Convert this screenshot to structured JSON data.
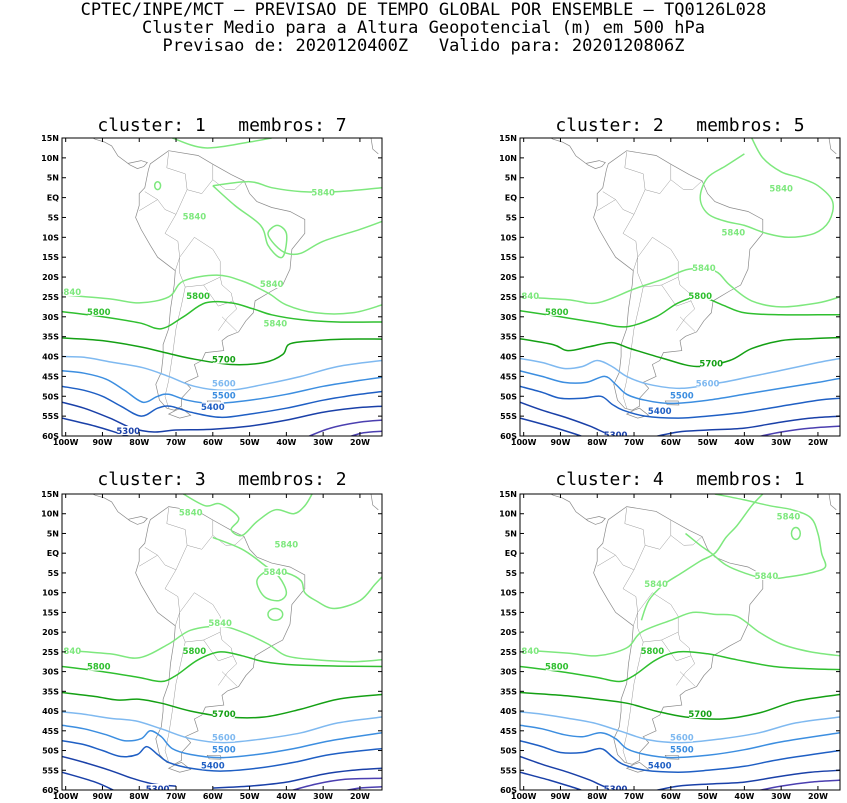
{
  "header": {
    "line1": "CPTEC/INPE/MCT – PREVISAO DE TEMPO GLOBAL POR ENSEMBLE – TQ0126L028",
    "line2": "Cluster Medio para a Altura Geopotencial (m) em 500 hPa",
    "line3": "Previsao de: 2020120400Z   Valido para: 2020120806Z"
  },
  "axes": {
    "lon_labels": [
      "100W",
      "90W",
      "80W",
      "70W",
      "60W",
      "50W",
      "40W",
      "30W",
      "20W"
    ],
    "lat_labels": [
      "15N",
      "10N",
      "5N",
      "EQ",
      "5S",
      "10S",
      "15S",
      "20S",
      "25S",
      "30S",
      "35S",
      "40S",
      "45S",
      "50S",
      "55S",
      "60S"
    ],
    "lon_range": [
      -101,
      -14
    ],
    "lat_range": [
      -60,
      15
    ]
  },
  "level_colors": {
    "5840": "#7ee87e",
    "5800": "#2fbf2f",
    "5700": "#14a014",
    "5600": "#7fb9f0",
    "5500": "#3c8ee0",
    "5400": "#1f5fc4",
    "5300": "#1a40a8",
    "5200": "#4b3fb0"
  },
  "chart_data": [
    {
      "type": "contour",
      "title": "cluster: 1   membros: 7",
      "variable": "Altura Geopotencial 500 hPa (m)",
      "labels": [
        {
          "text": "5840",
          "level": 5840,
          "lon": -30,
          "lat": 1
        },
        {
          "text": "5840",
          "level": 5840,
          "lon": -65,
          "lat": -5
        },
        {
          "text": "5840",
          "level": 5840,
          "lon": -43,
          "lat": -32
        },
        {
          "text": "5840",
          "level": 5840,
          "lon": -99,
          "lat": -24
        },
        {
          "text": "5840",
          "level": 5840,
          "lon": -44,
          "lat": -22
        },
        {
          "text": "5800",
          "level": 5800,
          "lon": -91,
          "lat": -29
        },
        {
          "text": "5800",
          "level": 5800,
          "lon": -64,
          "lat": -25
        },
        {
          "text": "5700",
          "level": 5700,
          "lon": -57,
          "lat": -41
        },
        {
          "text": "5600",
          "level": 5600,
          "lon": -57,
          "lat": -47
        },
        {
          "text": "5500",
          "level": 5500,
          "lon": -57,
          "lat": -50
        },
        {
          "text": "5400",
          "level": 5400,
          "lon": -60,
          "lat": -53
        },
        {
          "text": "5300",
          "level": 5300,
          "lon": -83,
          "lat": -59
        }
      ]
    },
    {
      "type": "contour",
      "title": "cluster: 2   membros: 5",
      "variable": "Altura Geopotencial 500 hPa (m)",
      "labels": [
        {
          "text": "5840",
          "level": 5840,
          "lon": -30,
          "lat": 2
        },
        {
          "text": "5840",
          "level": 5840,
          "lon": -43,
          "lat": -9
        },
        {
          "text": "5840",
          "level": 5840,
          "lon": -99,
          "lat": -25
        },
        {
          "text": "5840",
          "level": 5840,
          "lon": -51,
          "lat": -18
        },
        {
          "text": "5800",
          "level": 5800,
          "lon": -91,
          "lat": -29
        },
        {
          "text": "5800",
          "level": 5800,
          "lon": -52,
          "lat": -25
        },
        {
          "text": "5700",
          "level": 5700,
          "lon": -49,
          "lat": -42
        },
        {
          "text": "5600",
          "level": 5600,
          "lon": -50,
          "lat": -47
        },
        {
          "text": "5500",
          "level": 5500,
          "lon": -57,
          "lat": -50
        },
        {
          "text": "5400",
          "level": 5400,
          "lon": -63,
          "lat": -54
        },
        {
          "text": "5300",
          "level": 5300,
          "lon": -75,
          "lat": -60
        }
      ]
    },
    {
      "type": "contour",
      "title": "cluster: 3   membros: 2",
      "variable": "Altura Geopotencial 500 hPa (m)",
      "labels": [
        {
          "text": "5840",
          "level": 5840,
          "lon": -66,
          "lat": 10
        },
        {
          "text": "5840",
          "level": 5840,
          "lon": -40,
          "lat": 2
        },
        {
          "text": "5840",
          "level": 5840,
          "lon": -43,
          "lat": -5
        },
        {
          "text": "5840",
          "level": 5840,
          "lon": -99,
          "lat": -25
        },
        {
          "text": "5840",
          "level": 5840,
          "lon": -58,
          "lat": -18
        },
        {
          "text": "5800",
          "level": 5800,
          "lon": -91,
          "lat": -29
        },
        {
          "text": "5800",
          "level": 5800,
          "lon": -65,
          "lat": -25
        },
        {
          "text": "5700",
          "level": 5700,
          "lon": -57,
          "lat": -41
        },
        {
          "text": "5600",
          "level": 5600,
          "lon": -57,
          "lat": -47
        },
        {
          "text": "5500",
          "level": 5500,
          "lon": -57,
          "lat": -50
        },
        {
          "text": "5400",
          "level": 5400,
          "lon": -60,
          "lat": -54
        },
        {
          "text": "5300",
          "level": 5300,
          "lon": -75,
          "lat": -60
        }
      ]
    },
    {
      "type": "contour",
      "title": "cluster: 4   membros: 1",
      "variable": "Altura Geopotencial 500 hPa (m)",
      "labels": [
        {
          "text": "5840",
          "level": 5840,
          "lon": -28,
          "lat": 9
        },
        {
          "text": "5840",
          "level": 5840,
          "lon": -34,
          "lat": -6
        },
        {
          "text": "5840",
          "level": 5840,
          "lon": -64,
          "lat": -8
        },
        {
          "text": "5840",
          "level": 5840,
          "lon": -99,
          "lat": -25
        },
        {
          "text": "5800",
          "level": 5800,
          "lon": -91,
          "lat": -29
        },
        {
          "text": "5800",
          "level": 5800,
          "lon": -65,
          "lat": -25
        },
        {
          "text": "5700",
          "level": 5700,
          "lon": -52,
          "lat": -41
        },
        {
          "text": "5600",
          "level": 5600,
          "lon": -57,
          "lat": -47
        },
        {
          "text": "5500",
          "level": 5500,
          "lon": -57,
          "lat": -50
        },
        {
          "text": "5400",
          "level": 5400,
          "lon": -63,
          "lat": -54
        },
        {
          "text": "5300",
          "level": 5300,
          "lon": -75,
          "lat": -60
        }
      ]
    }
  ]
}
